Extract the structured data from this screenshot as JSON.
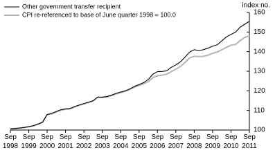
{
  "chart_data": {
    "type": "line",
    "y_label": "index no.",
    "categories": [
      "Sep 1998",
      null,
      null,
      null,
      "Sep 1999",
      null,
      null,
      null,
      "Sep 2000",
      null,
      null,
      null,
      "Sep 2001",
      null,
      null,
      null,
      "Sep 2002",
      null,
      null,
      null,
      "Sep 2003",
      null,
      null,
      null,
      "Sep 2004",
      null,
      null,
      null,
      "Sep 2005",
      null,
      null,
      null,
      "Sep 2006",
      null,
      null,
      null,
      "Sep 2007",
      null,
      null,
      null,
      "Sep 2008",
      null,
      null,
      null,
      "Sep 2009",
      null,
      null,
      null,
      "Sep 2010",
      null,
      null,
      null,
      "Sep 2011"
    ],
    "series": [
      {
        "name": "Other government transfer recipient",
        "color": "#000000",
        "values": [
          100.6,
          100.8,
          101.0,
          101.3,
          101.7,
          102.2,
          103.0,
          104.0,
          107.9,
          108.5,
          109.5,
          110.4,
          110.8,
          111.0,
          112.0,
          112.8,
          113.5,
          114.2,
          115.0,
          116.9,
          116.8,
          117.1,
          117.8,
          118.7,
          119.4,
          120.0,
          121.0,
          122.3,
          123.2,
          124.2,
          125.8,
          128.5,
          129.8,
          129.9,
          130.2,
          132.0,
          133.2,
          134.8,
          137.2,
          139.8,
          141.0,
          140.5,
          141.0,
          141.8,
          142.8,
          143.5,
          145.5,
          147.5,
          148.8,
          150.0,
          152.5,
          154.0,
          155.5
        ]
      },
      {
        "name": "CPI re-referenced to base of June quarter 1998 = 100.0",
        "color": "#b4b4b4",
        "values": [
          100.6,
          100.8,
          101.0,
          101.3,
          101.7,
          102.2,
          103.0,
          104.0,
          107.9,
          108.3,
          109.2,
          110.1,
          110.6,
          110.8,
          111.8,
          112.6,
          113.3,
          114.0,
          114.8,
          116.6,
          116.6,
          116.9,
          117.5,
          118.4,
          119.1,
          119.8,
          120.7,
          121.8,
          122.8,
          123.6,
          124.7,
          126.8,
          127.7,
          128.0,
          128.5,
          129.8,
          131.0,
          132.4,
          134.5,
          136.8,
          137.6,
          137.5,
          137.6,
          138.2,
          139.2,
          139.8,
          141.0,
          142.2,
          143.3,
          143.7,
          145.6,
          147.3,
          148.0
        ]
      }
    ],
    "ylim": [
      100,
      160
    ],
    "yticks": [
      100,
      110,
      120,
      130,
      140,
      150,
      160
    ],
    "grid": false
  }
}
